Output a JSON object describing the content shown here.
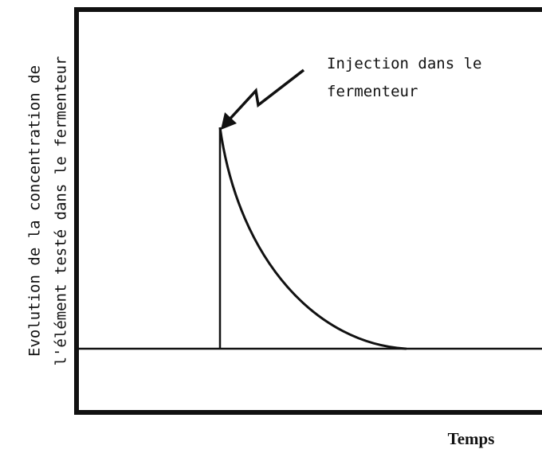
{
  "y_axis_label": [
    "Evolution de la concentration de",
    "l'élément testé dans le fermenteur"
  ],
  "annotation": [
    "Injection dans le",
    "fermenteur"
  ],
  "x_axis_label": "Temps"
}
